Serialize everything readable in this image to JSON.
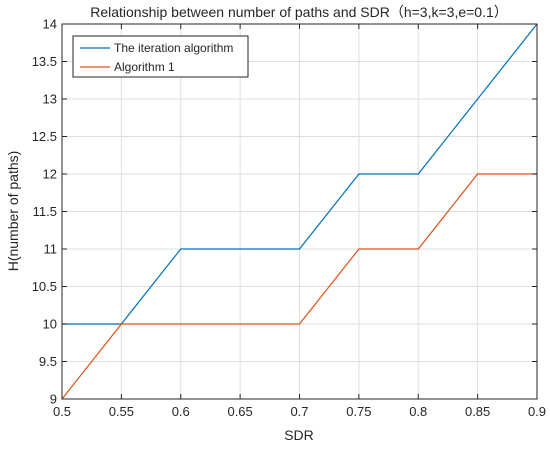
{
  "chart_data": {
    "type": "line",
    "title": "Relationship between number of paths and SDR（h=3,k=3,e=0.1）",
    "xlabel": "SDR",
    "ylabel": "H(number of paths)",
    "xlim": [
      0.5,
      0.9
    ],
    "ylim": [
      9,
      14
    ],
    "x_ticks": [
      "0.5",
      "0.55",
      "0.6",
      "0.65",
      "0.7",
      "0.75",
      "0.8",
      "0.85",
      "0.9"
    ],
    "y_ticks": [
      "9",
      "9.5",
      "10",
      "10.5",
      "11",
      "11.5",
      "12",
      "12.5",
      "13",
      "13.5",
      "14"
    ],
    "grid": true,
    "legend_position": "top-left",
    "x": [
      0.5,
      0.55,
      0.6,
      0.65,
      0.7,
      0.75,
      0.8,
      0.85,
      0.9
    ],
    "series": [
      {
        "name": "The iteration algorithm",
        "color": "#0072BD",
        "values": [
          10,
          10,
          11,
          11,
          11,
          12,
          12,
          13,
          14
        ]
      },
      {
        "name": "Algorithm 1",
        "color": "#D95319",
        "values": [
          9,
          10,
          10,
          10,
          10,
          11,
          11,
          12,
          12
        ]
      }
    ]
  }
}
